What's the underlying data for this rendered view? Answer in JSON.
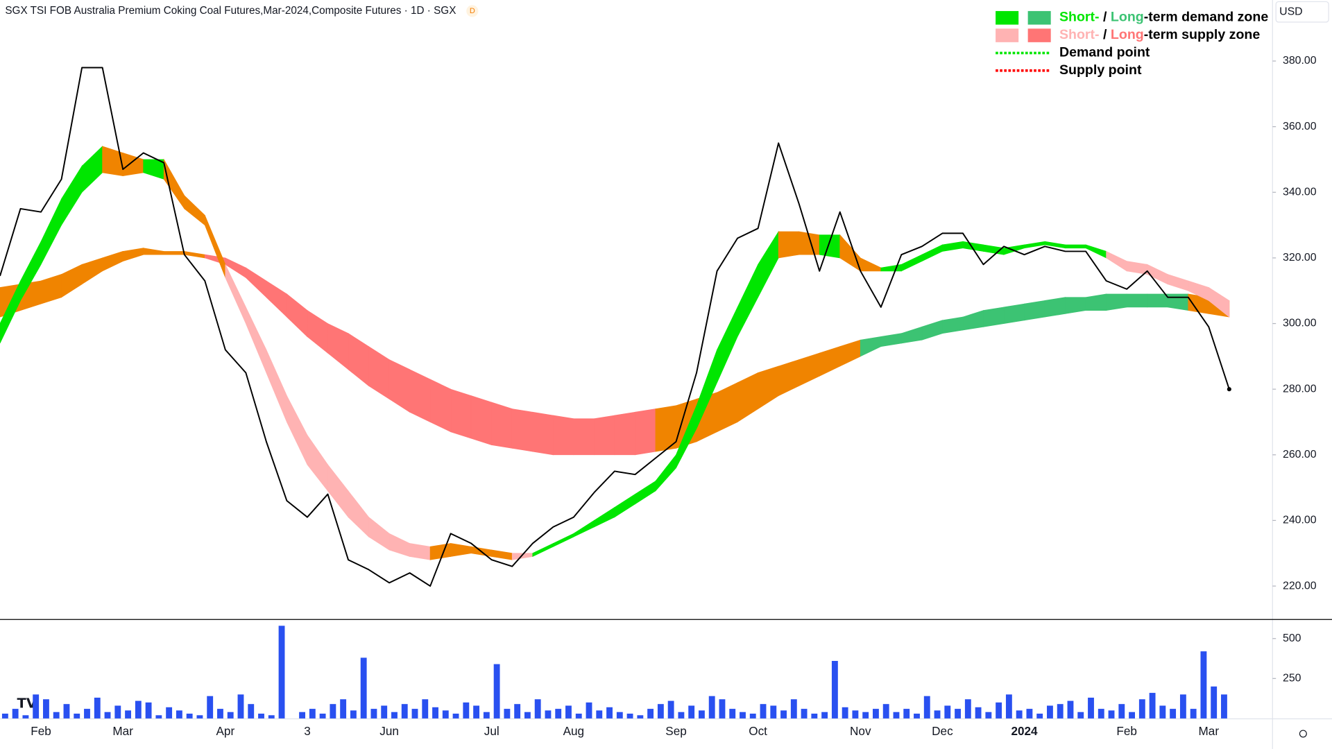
{
  "header": {
    "title": "SGX TSI FOB Australia Premium Coking Coal Futures,Mar-2024,Composite Futures · 1D · SGX",
    "badge": "D",
    "currency": "USD"
  },
  "chart_data": [
    {
      "type": "zone-line",
      "categories": [
        null,
        null,
        "Feb",
        null,
        null,
        null,
        "Mar",
        null,
        null,
        null,
        null,
        "Apr",
        null,
        null,
        null,
        "3",
        null,
        null,
        null,
        "Jun",
        null,
        null,
        null,
        null,
        "Jul",
        null,
        null,
        null,
        "Aug",
        null,
        null,
        null,
        null,
        "Sep",
        null,
        null,
        null,
        "Oct",
        null,
        null,
        null,
        null,
        "Nov",
        null,
        null,
        null,
        "Dec",
        null,
        null,
        null,
        "2024",
        null,
        null,
        null,
        null,
        "Feb",
        null,
        null,
        null,
        "Mar",
        null
      ],
      "ylim": [
        210.2,
        398.6
      ],
      "yticks": [
        {
          "value": 220,
          "label": "220.00"
        },
        {
          "value": 240,
          "label": "240.00"
        },
        {
          "value": 260,
          "label": "260.00"
        },
        {
          "value": 280,
          "label": "280.00"
        },
        {
          "value": 300,
          "label": "300.00"
        },
        {
          "value": 320,
          "label": "320.00"
        },
        {
          "value": 340,
          "label": "340.00"
        },
        {
          "value": 360,
          "label": "360.00"
        },
        {
          "value": 380,
          "label": "380.00"
        }
      ],
      "zones": [
        {
          "upper": [
            311,
            312,
            313,
            315,
            318,
            320,
            322,
            323,
            322,
            322,
            321,
            320,
            317,
            313,
            309,
            304,
            300,
            297,
            293,
            289,
            286,
            283,
            280,
            278,
            276,
            274,
            273,
            272,
            271,
            271,
            272,
            273,
            274,
            275,
            277,
            279,
            282,
            285,
            287,
            289,
            291,
            293,
            295,
            296,
            297,
            299,
            301,
            302,
            304,
            305,
            306,
            307,
            308,
            308,
            309,
            309,
            309,
            309,
            309,
            308,
            307
          ],
          "lower": [
            302,
            304,
            306,
            308,
            312,
            316,
            319,
            321,
            321,
            321,
            320,
            318,
            314,
            308,
            302,
            296,
            291,
            286,
            281,
            277,
            273,
            270,
            267,
            265,
            263,
            262,
            261,
            260,
            260,
            260,
            260,
            260,
            261,
            262,
            264,
            267,
            270,
            274,
            278,
            281,
            284,
            287,
            290,
            293,
            294,
            295,
            297,
            298,
            299,
            300,
            301,
            302,
            303,
            304,
            304,
            305,
            305,
            305,
            304,
            303,
            302
          ],
          "segment_colors": [
            "#f08400",
            "#f08400",
            "#f08400",
            "#f08400",
            "#f08400",
            "#f08400",
            "#f08400",
            "#f08400",
            "#f08400",
            "#f08400",
            "#ff7575",
            "#ff7575",
            "#ff7575",
            "#ff7575",
            "#ff7575",
            "#ff7575",
            "#ff7575",
            "#ff7575",
            "#ff7575",
            "#ff7575",
            "#ff7575",
            "#ff7575",
            "#ff7575",
            "#ff7575",
            "#ff7575",
            "#ff7575",
            "#ff7575",
            "#ff7575",
            "#ff7575",
            "#ff7575",
            "#ff7575",
            "#ff7575",
            "#f08400",
            "#f08400",
            "#f08400",
            "#f08400",
            "#f08400",
            "#f08400",
            "#f08400",
            "#f08400",
            "#f08400",
            "#f08400",
            "#3cc373",
            "#3cc373",
            "#3cc373",
            "#3cc373",
            "#3cc373",
            "#3cc373",
            "#3cc373",
            "#3cc373",
            "#3cc373",
            "#3cc373",
            "#3cc373",
            "#3cc373",
            "#3cc373",
            "#3cc373",
            "#3cc373",
            "#3cc373",
            "#f08400",
            "#f08400"
          ]
        },
        {
          "upper": [
            300,
            313,
            325,
            338,
            348,
            354,
            352,
            350,
            350,
            339,
            333,
            318,
            305,
            292,
            278,
            266,
            257,
            249,
            241,
            236,
            233,
            232,
            233,
            232,
            231,
            230,
            230,
            233,
            236,
            240,
            244,
            248,
            252,
            260,
            275,
            292,
            305,
            318,
            328,
            328,
            327,
            327,
            320,
            317,
            318,
            321,
            324,
            325,
            324,
            323,
            324,
            325,
            324,
            324,
            322,
            319,
            318,
            315,
            313,
            311,
            307
          ],
          "lower": [
            294,
            307,
            318,
            330,
            340,
            346,
            345,
            346,
            344,
            335,
            330,
            314,
            300,
            285,
            270,
            257,
            249,
            241,
            235,
            231,
            229,
            228,
            229,
            230,
            229,
            228,
            229,
            232,
            235,
            238,
            241,
            245,
            249,
            256,
            268,
            282,
            296,
            308,
            320,
            321,
            321,
            320,
            316,
            316,
            316,
            319,
            322,
            323,
            322,
            321,
            323,
            324,
            323,
            323,
            320,
            316,
            315,
            312,
            310,
            307,
            302
          ],
          "segment_colors": [
            "#00e600",
            "#00e600",
            "#00e600",
            "#00e600",
            "#00e600",
            "#f08400",
            "#f08400",
            "#00e600",
            "#f08400",
            "#f08400",
            "#f08400",
            "#ffb3b3",
            "#ffb3b3",
            "#ffb3b3",
            "#ffb3b3",
            "#ffb3b3",
            "#ffb3b3",
            "#ffb3b3",
            "#ffb3b3",
            "#ffb3b3",
            "#ffb3b3",
            "#f08400",
            "#f08400",
            "#f08400",
            "#f08400",
            "#ffb3b3",
            "#00e600",
            "#00e600",
            "#00e600",
            "#00e600",
            "#00e600",
            "#00e600",
            "#00e600",
            "#00e600",
            "#00e600",
            "#00e600",
            "#00e600",
            "#00e600",
            "#f08400",
            "#f08400",
            "#00e600",
            "#f08400",
            "#f08400",
            "#00e600",
            "#00e600",
            "#00e600",
            "#00e600",
            "#00e600",
            "#00e600",
            "#00e600",
            "#00e600",
            "#00e600",
            "#00e600",
            "#00e600",
            "#ffb3b3",
            "#ffb3b3",
            "#ffb3b3",
            "#ffb3b3",
            "#ffb3b3",
            "#ffb3b3"
          ]
        }
      ],
      "series": [
        {
          "color": "#000000",
          "values": [
            314.5,
            335,
            334,
            344,
            378,
            378,
            347,
            352,
            349,
            321,
            313,
            292,
            285,
            264,
            246,
            241,
            248,
            228,
            225,
            221,
            224,
            220,
            236,
            233,
            228,
            226,
            233,
            238,
            241,
            248.5,
            255,
            254,
            259,
            264,
            285,
            316,
            326,
            329,
            355,
            336.5,
            316,
            334,
            316,
            305,
            321,
            323.5,
            327.5,
            327.5,
            318,
            323.5,
            321,
            323.5,
            322,
            322,
            313,
            310.5,
            316,
            308,
            308,
            299,
            280
          ]
        }
      ],
      "legend": [
        {
          "swatches": [
            "#00e600",
            "#3cc373"
          ],
          "parts": [
            {
              "text": "Short-",
              "color": "#00e600"
            },
            {
              "text": " / ",
              "color": "#000000"
            },
            {
              "text": "Long",
              "color": "#3cc373"
            },
            {
              "text": "-term demand zone",
              "color": "#000000"
            }
          ]
        },
        {
          "swatches": [
            "#ffb3b3",
            "#ff7575"
          ],
          "parts": [
            {
              "text": "Short-",
              "color": "#ffb3b3"
            },
            {
              "text": " / ",
              "color": "#000000"
            },
            {
              "text": "Long",
              "color": "#ff7575"
            },
            {
              "text": "-term supply zone",
              "color": "#000000"
            }
          ]
        },
        {
          "dotted": "#00e600",
          "parts": [
            {
              "text": "Demand point",
              "color": "#000000"
            }
          ]
        },
        {
          "dotted": "#ff0000",
          "parts": [
            {
              "text": "Supply point",
              "color": "#000000"
            }
          ]
        }
      ]
    },
    {
      "type": "bar",
      "color": "#2950f0",
      "ylim": [
        0,
        606
      ],
      "yticks": [
        250,
        500
      ],
      "values": [
        30,
        60,
        20,
        150,
        120,
        40,
        90,
        30,
        60,
        130,
        40,
        80,
        50,
        110,
        100,
        20,
        70,
        50,
        30,
        20,
        140,
        60,
        40,
        150,
        90,
        30,
        20,
        580,
        0,
        40,
        60,
        30,
        90,
        120,
        50,
        380,
        60,
        80,
        40,
        90,
        60,
        120,
        70,
        50,
        30,
        100,
        80,
        40,
        340,
        60,
        90,
        40,
        120,
        50,
        60,
        80,
        30,
        100,
        50,
        70,
        40,
        30,
        20,
        60,
        90,
        110,
        40,
        80,
        50,
        140,
        120,
        60,
        40,
        30,
        90,
        80,
        50,
        120,
        60,
        30,
        40,
        360,
        70,
        50,
        40,
        60,
        90,
        40,
        60,
        30,
        140,
        50,
        80,
        60,
        120,
        70,
        40,
        100,
        150,
        50,
        60,
        30,
        80,
        90,
        110,
        40,
        130,
        60,
        50,
        90,
        40,
        120,
        160,
        80,
        60,
        150,
        60,
        420,
        200,
        150
      ]
    }
  ]
}
